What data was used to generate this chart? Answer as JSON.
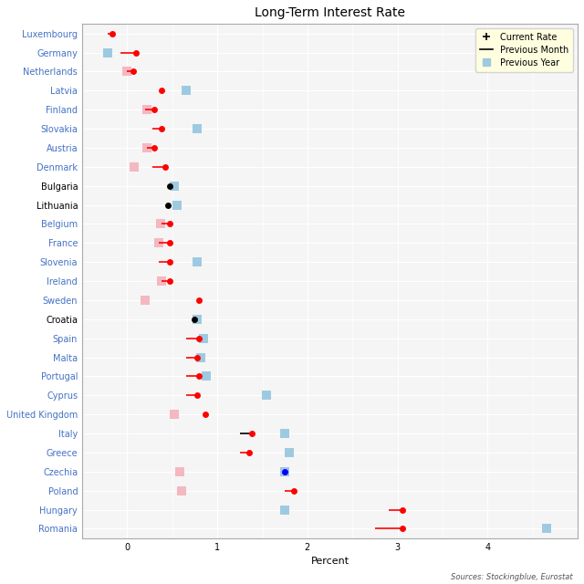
{
  "title": "Long-Term Interest Rate",
  "xlabel": "Percent",
  "source": "Sources: Stockingblue, Eurostat",
  "countries": [
    "Luxembourg",
    "Germany",
    "Netherlands",
    "Latvia",
    "Finland",
    "Slovakia",
    "Austria",
    "Denmark",
    "Bulgaria",
    "Lithuania",
    "Belgium",
    "France",
    "Slovenia",
    "Ireland",
    "Sweden",
    "Croatia",
    "Spain",
    "Malta",
    "Portugal",
    "Cyprus",
    "United Kingdom",
    "Italy",
    "Greece",
    "Czechia",
    "Poland",
    "Hungary",
    "Romania"
  ],
  "current_rate": [
    -0.17,
    0.1,
    0.07,
    0.38,
    0.3,
    0.38,
    0.3,
    0.42,
    0.47,
    0.45,
    0.47,
    0.47,
    0.47,
    0.47,
    0.8,
    0.75,
    0.8,
    0.78,
    0.8,
    0.78,
    0.87,
    1.38,
    1.35,
    1.75,
    1.85,
    3.05,
    3.05
  ],
  "prev_month_from": [
    -0.22,
    -0.08,
    0.0,
    null,
    0.2,
    0.28,
    0.22,
    0.28,
    null,
    null,
    0.38,
    0.35,
    0.35,
    0.38,
    null,
    null,
    0.65,
    0.65,
    0.65,
    0.65,
    null,
    1.25,
    1.25,
    null,
    1.75,
    2.9,
    2.75
  ],
  "line_colors": [
    "red",
    "red",
    "red",
    null,
    "red",
    "red",
    "red",
    "red",
    null,
    null,
    "red",
    "red",
    "red",
    "red",
    null,
    null,
    "red",
    "red",
    "red",
    "red",
    null,
    "black",
    "red",
    null,
    "red",
    "red",
    "red"
  ],
  "dot_colors": [
    "red",
    "red",
    "red",
    "red",
    "red",
    "red",
    "red",
    "red",
    "black",
    "black",
    "red",
    "red",
    "red",
    "red",
    "red",
    "black",
    "red",
    "red",
    "red",
    "red",
    "red",
    "red",
    "red",
    "blue",
    "red",
    "red",
    "red"
  ],
  "prev_year_teal": [
    null,
    -0.22,
    null,
    0.65,
    null,
    0.78,
    null,
    null,
    0.52,
    0.55,
    null,
    null,
    0.78,
    null,
    null,
    0.78,
    0.85,
    0.82,
    0.88,
    1.55,
    null,
    1.75,
    1.8,
    1.75,
    null,
    1.75,
    4.65
  ],
  "prev_year_pink": [
    null,
    null,
    0.0,
    null,
    0.22,
    null,
    0.22,
    0.08,
    null,
    null,
    0.37,
    0.35,
    null,
    0.38,
    0.2,
    null,
    null,
    null,
    null,
    null,
    0.52,
    null,
    null,
    0.58,
    0.6,
    null,
    null
  ],
  "xlim": [
    -0.5,
    5.0
  ],
  "xticks": [
    0,
    1,
    2,
    3,
    4
  ],
  "bg_color": "#f5f5f5",
  "grid_color": "#ffffff",
  "pink_color": "#F4B8C1",
  "teal_color": "#9ECAE1",
  "label_color_blue": "#4472c4",
  "label_color_black": "black",
  "fig_width": 6.4,
  "fig_height": 6.4,
  "dpi": 100
}
